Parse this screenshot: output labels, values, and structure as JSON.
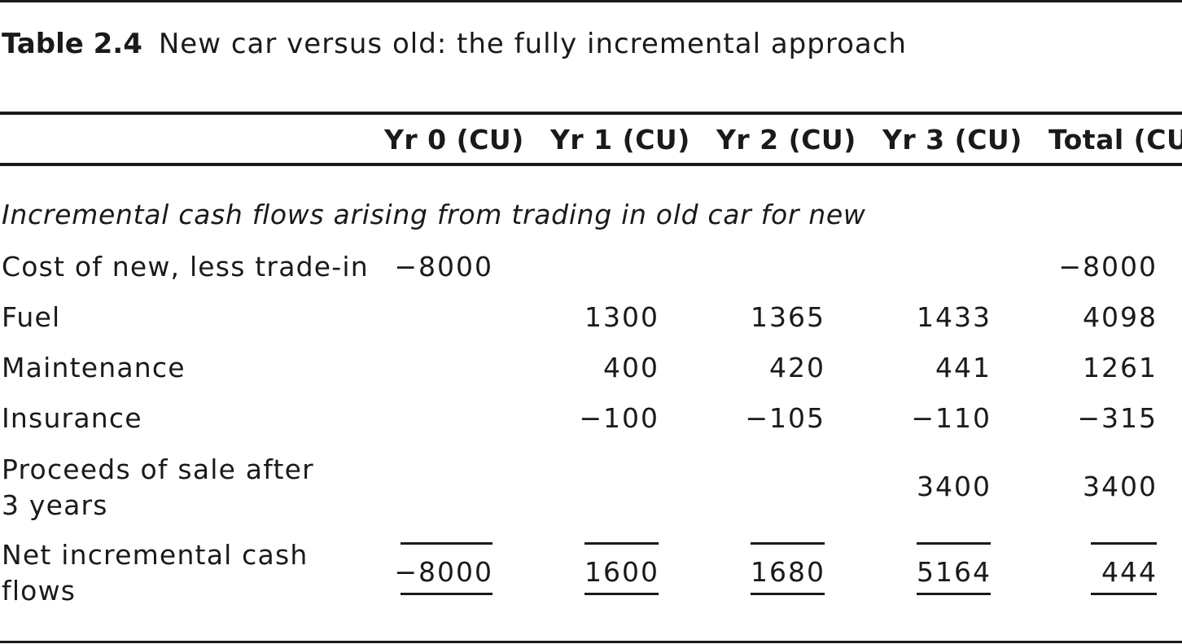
{
  "caption": {
    "label": "Table 2.4",
    "title": "New car versus old: the fully incremental approach"
  },
  "columns": [
    "Yr 0 (CU)",
    "Yr 1 (CU)",
    "Yr 2 (CU)",
    "Yr 3 (CU)",
    "Total (CU)"
  ],
  "section_heading": "Incremental cash flows arising from trading in old car for new",
  "rows": [
    {
      "label": "Cost of new, less trade-in",
      "values": [
        "−8000",
        "",
        "",
        "",
        "−8000"
      ]
    },
    {
      "label": "Fuel",
      "values": [
        "",
        "1300",
        "1365",
        "1433",
        "4098"
      ]
    },
    {
      "label": "Maintenance",
      "values": [
        "",
        "400",
        "420",
        "441",
        "1261"
      ]
    },
    {
      "label": "Insurance",
      "values": [
        "",
        "−100",
        "−105",
        "−110",
        "−315"
      ]
    },
    {
      "label": "Proceeds of sale after 3 years",
      "values": [
        "",
        "",
        "",
        "3400",
        "3400"
      ]
    }
  ],
  "net_row": {
    "label": "Net incremental cash flows",
    "values": [
      "−8000",
      "1600",
      "1680",
      "5164",
      "444"
    ]
  }
}
